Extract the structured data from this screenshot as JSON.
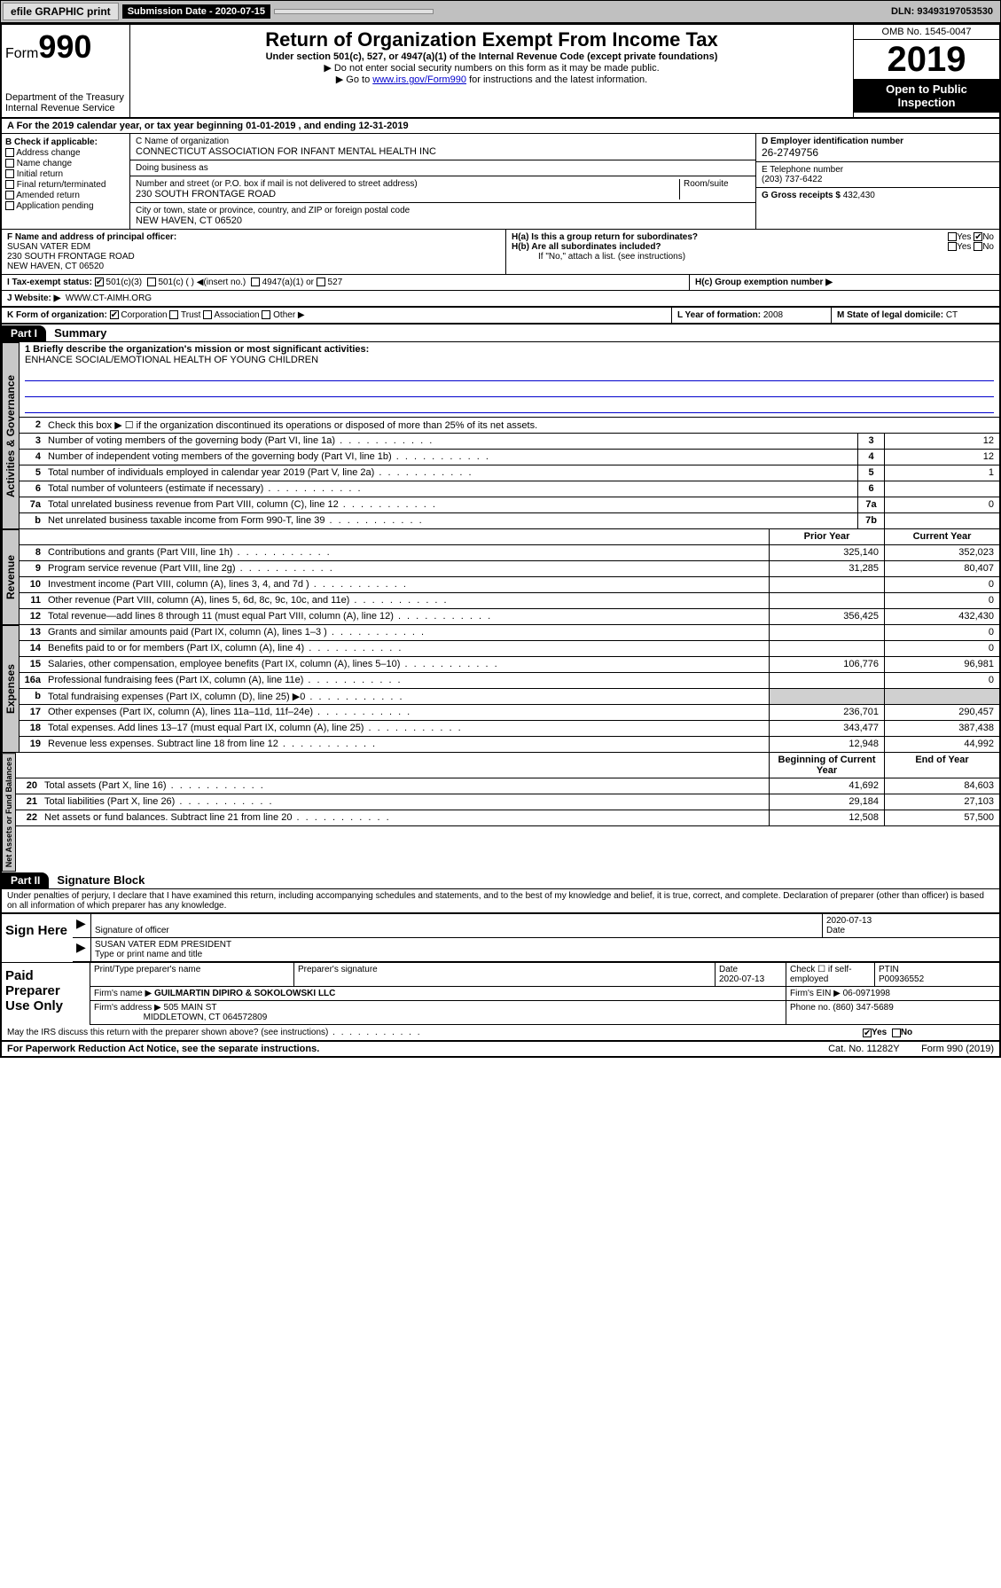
{
  "topbar": {
    "efile": "efile GRAPHIC print",
    "subdate_label": "Submission Date - 2020-07-15",
    "dln": "DLN: 93493197053530"
  },
  "header": {
    "form_label": "Form",
    "form_num": "990",
    "dept": "Department of the Treasury\nInternal Revenue Service",
    "title": "Return of Organization Exempt From Income Tax",
    "sub": "Under section 501(c), 527, or 4947(a)(1) of the Internal Revenue Code (except private foundations)",
    "note1": "▶ Do not enter social security numbers on this form as it may be made public.",
    "note2_pre": "▶ Go to ",
    "note2_link": "www.irs.gov/Form990",
    "note2_post": " for instructions and the latest information.",
    "omb": "OMB No. 1545-0047",
    "year": "2019",
    "inspect": "Open to Public Inspection"
  },
  "row_a": "A For the 2019 calendar year, or tax year beginning 01-01-2019   , and ending 12-31-2019",
  "box_b": {
    "title": "B Check if applicable:",
    "items": [
      "Address change",
      "Name change",
      "Initial return",
      "Final return/terminated",
      "Amended return",
      "Application pending"
    ]
  },
  "box_c": {
    "name_lbl": "C Name of organization",
    "name": "CONNECTICUT ASSOCIATION FOR INFANT MENTAL HEALTH INC",
    "dba_lbl": "Doing business as",
    "addr_lbl": "Number and street (or P.O. box if mail is not delivered to street address)",
    "room_lbl": "Room/suite",
    "addr": "230 SOUTH FRONTAGE ROAD",
    "city_lbl": "City or town, state or province, country, and ZIP or foreign postal code",
    "city": "NEW HAVEN, CT  06520"
  },
  "box_d": {
    "lbl": "D Employer identification number",
    "val": "26-2749756"
  },
  "box_e": {
    "lbl": "E Telephone number",
    "val": "(203) 737-6422"
  },
  "box_g": {
    "lbl": "G Gross receipts $",
    "val": "432,430"
  },
  "box_f": {
    "lbl": "F Name and address of principal officer:",
    "name": "SUSAN VATER EDM",
    "addr": "230 SOUTH FRONTAGE ROAD",
    "city": "NEW HAVEN, CT  06520"
  },
  "box_h": {
    "a": "H(a)  Is this a group return for subordinates?",
    "b": "H(b)  Are all subordinates included?",
    "bnote": "If \"No,\" attach a list. (see instructions)",
    "c": "H(c)  Group exemption number ▶",
    "yes": "Yes",
    "no": "No"
  },
  "tax_status": {
    "lbl": "I   Tax-exempt status:",
    "c3": "501(c)(3)",
    "c": "501(c) (  ) ◀(insert no.)",
    "a1": "4947(a)(1) or",
    "s527": "527"
  },
  "website": {
    "lbl": "J   Website: ▶",
    "val": "WWW.CT-AIMH.ORG"
  },
  "box_k": "K Form of organization:",
  "k_opts": [
    "Corporation",
    "Trust",
    "Association",
    "Other ▶"
  ],
  "box_l": {
    "lbl": "L Year of formation:",
    "val": "2008"
  },
  "box_m": {
    "lbl": "M State of legal domicile:",
    "val": "CT"
  },
  "part1": {
    "hdr": "Part I",
    "title": "Summary"
  },
  "mission": {
    "lbl": "1  Briefly describe the organization's mission or most significant activities:",
    "text": "ENHANCE SOCIAL/EMOTIONAL HEALTH OF YOUNG CHILDREN"
  },
  "vtabs": [
    "Activities & Governance",
    "Revenue",
    "Expenses",
    "Net Assets or Fund Balances"
  ],
  "lines_gov": [
    {
      "n": "2",
      "d": "Check this box ▶ ☐  if the organization discontinued its operations or disposed of more than 25% of its net assets."
    },
    {
      "n": "3",
      "d": "Number of voting members of the governing body (Part VI, line 1a)",
      "b": "3",
      "v": "12"
    },
    {
      "n": "4",
      "d": "Number of independent voting members of the governing body (Part VI, line 1b)",
      "b": "4",
      "v": "12"
    },
    {
      "n": "5",
      "d": "Total number of individuals employed in calendar year 2019 (Part V, line 2a)",
      "b": "5",
      "v": "1"
    },
    {
      "n": "6",
      "d": "Total number of volunteers (estimate if necessary)",
      "b": "6",
      "v": ""
    },
    {
      "n": "7a",
      "d": "Total unrelated business revenue from Part VIII, column (C), line 12",
      "b": "7a",
      "v": "0"
    },
    {
      "n": "b",
      "d": "Net unrelated business taxable income from Form 990-T, line 39",
      "b": "7b",
      "v": ""
    }
  ],
  "col_hdrs": {
    "py": "Prior Year",
    "cy": "Current Year",
    "by": "Beginning of Current Year",
    "ey": "End of Year"
  },
  "lines_rev": [
    {
      "n": "8",
      "d": "Contributions and grants (Part VIII, line 1h)",
      "p": "325,140",
      "c": "352,023"
    },
    {
      "n": "9",
      "d": "Program service revenue (Part VIII, line 2g)",
      "p": "31,285",
      "c": "80,407"
    },
    {
      "n": "10",
      "d": "Investment income (Part VIII, column (A), lines 3, 4, and 7d )",
      "p": "",
      "c": "0"
    },
    {
      "n": "11",
      "d": "Other revenue (Part VIII, column (A), lines 5, 6d, 8c, 9c, 10c, and 11e)",
      "p": "",
      "c": "0"
    },
    {
      "n": "12",
      "d": "Total revenue—add lines 8 through 11 (must equal Part VIII, column (A), line 12)",
      "p": "356,425",
      "c": "432,430"
    }
  ],
  "lines_exp": [
    {
      "n": "13",
      "d": "Grants and similar amounts paid (Part IX, column (A), lines 1–3 )",
      "p": "",
      "c": "0"
    },
    {
      "n": "14",
      "d": "Benefits paid to or for members (Part IX, column (A), line 4)",
      "p": "",
      "c": "0"
    },
    {
      "n": "15",
      "d": "Salaries, other compensation, employee benefits (Part IX, column (A), lines 5–10)",
      "p": "106,776",
      "c": "96,981"
    },
    {
      "n": "16a",
      "d": "Professional fundraising fees (Part IX, column (A), line 11e)",
      "p": "",
      "c": "0"
    },
    {
      "n": "b",
      "d": "Total fundraising expenses (Part IX, column (D), line 25) ▶0",
      "p": "shade",
      "c": "shade"
    },
    {
      "n": "17",
      "d": "Other expenses (Part IX, column (A), lines 11a–11d, 11f–24e)",
      "p": "236,701",
      "c": "290,457"
    },
    {
      "n": "18",
      "d": "Total expenses. Add lines 13–17 (must equal Part IX, column (A), line 25)",
      "p": "343,477",
      "c": "387,438"
    },
    {
      "n": "19",
      "d": "Revenue less expenses. Subtract line 18 from line 12",
      "p": "12,948",
      "c": "44,992"
    }
  ],
  "lines_net": [
    {
      "n": "20",
      "d": "Total assets (Part X, line 16)",
      "p": "41,692",
      "c": "84,603"
    },
    {
      "n": "21",
      "d": "Total liabilities (Part X, line 26)",
      "p": "29,184",
      "c": "27,103"
    },
    {
      "n": "22",
      "d": "Net assets or fund balances. Subtract line 21 from line 20",
      "p": "12,508",
      "c": "57,500"
    }
  ],
  "part2": {
    "hdr": "Part II",
    "title": "Signature Block"
  },
  "penalty": "Under penalties of perjury, I declare that I have examined this return, including accompanying schedules and statements, and to the best of my knowledge and belief, it is true, correct, and complete. Declaration of preparer (other than officer) is based on all information of which preparer has any knowledge.",
  "sign": {
    "here": "Sign Here",
    "sig_lbl": "Signature of officer",
    "date_lbl": "Date",
    "date": "2020-07-13",
    "name": "SUSAN VATER EDM PRESIDENT",
    "name_lbl": "Type or print name and title"
  },
  "prep": {
    "title": "Paid Preparer Use Only",
    "col1": "Print/Type preparer's name",
    "col2": "Preparer's signature",
    "col3": "Date",
    "date": "2020-07-13",
    "col4": "Check ☐ if self-employed",
    "col5_lbl": "PTIN",
    "ptin": "P00936552",
    "firm_lbl": "Firm's name   ▶",
    "firm": "GUILMARTIN DIPIRO & SOKOLOWSKI LLC",
    "ein_lbl": "Firm's EIN ▶",
    "ein": "06-0971998",
    "addr_lbl": "Firm's address ▶",
    "addr1": "505 MAIN ST",
    "addr2": "MIDDLETOWN, CT  064572809",
    "phone_lbl": "Phone no.",
    "phone": "(860) 347-5689"
  },
  "discuss": "May the IRS discuss this return with the preparer shown above? (see instructions)",
  "footer": {
    "pra": "For Paperwork Reduction Act Notice, see the separate instructions.",
    "cat": "Cat. No. 11282Y",
    "form": "Form 990 (2019)"
  }
}
